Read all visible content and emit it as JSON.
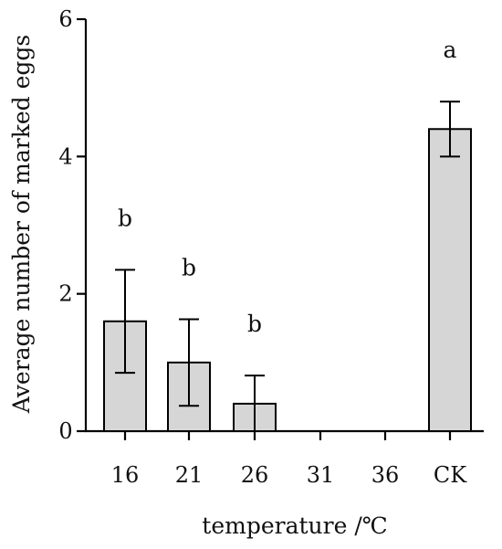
{
  "chart_data": {
    "type": "bar",
    "title": "",
    "xlabel": "temperature /℃",
    "ylabel": "Average number of marked eggs",
    "categories": [
      "16",
      "21",
      "26",
      "31",
      "36",
      "CK"
    ],
    "values": [
      1.6,
      1.0,
      0.4,
      0,
      0,
      4.4
    ],
    "error": [
      0.75,
      0.63,
      0.41,
      0,
      0,
      0.4
    ],
    "significance": [
      "b",
      "b",
      "b",
      "",
      "",
      "a"
    ],
    "ylim": [
      0,
      6
    ],
    "yticks": [
      "0",
      "2",
      "4",
      "6"
    ],
    "grid": false,
    "colors": {
      "bar_fill": "#d6d6d6",
      "bar_stroke": "#000000"
    }
  }
}
